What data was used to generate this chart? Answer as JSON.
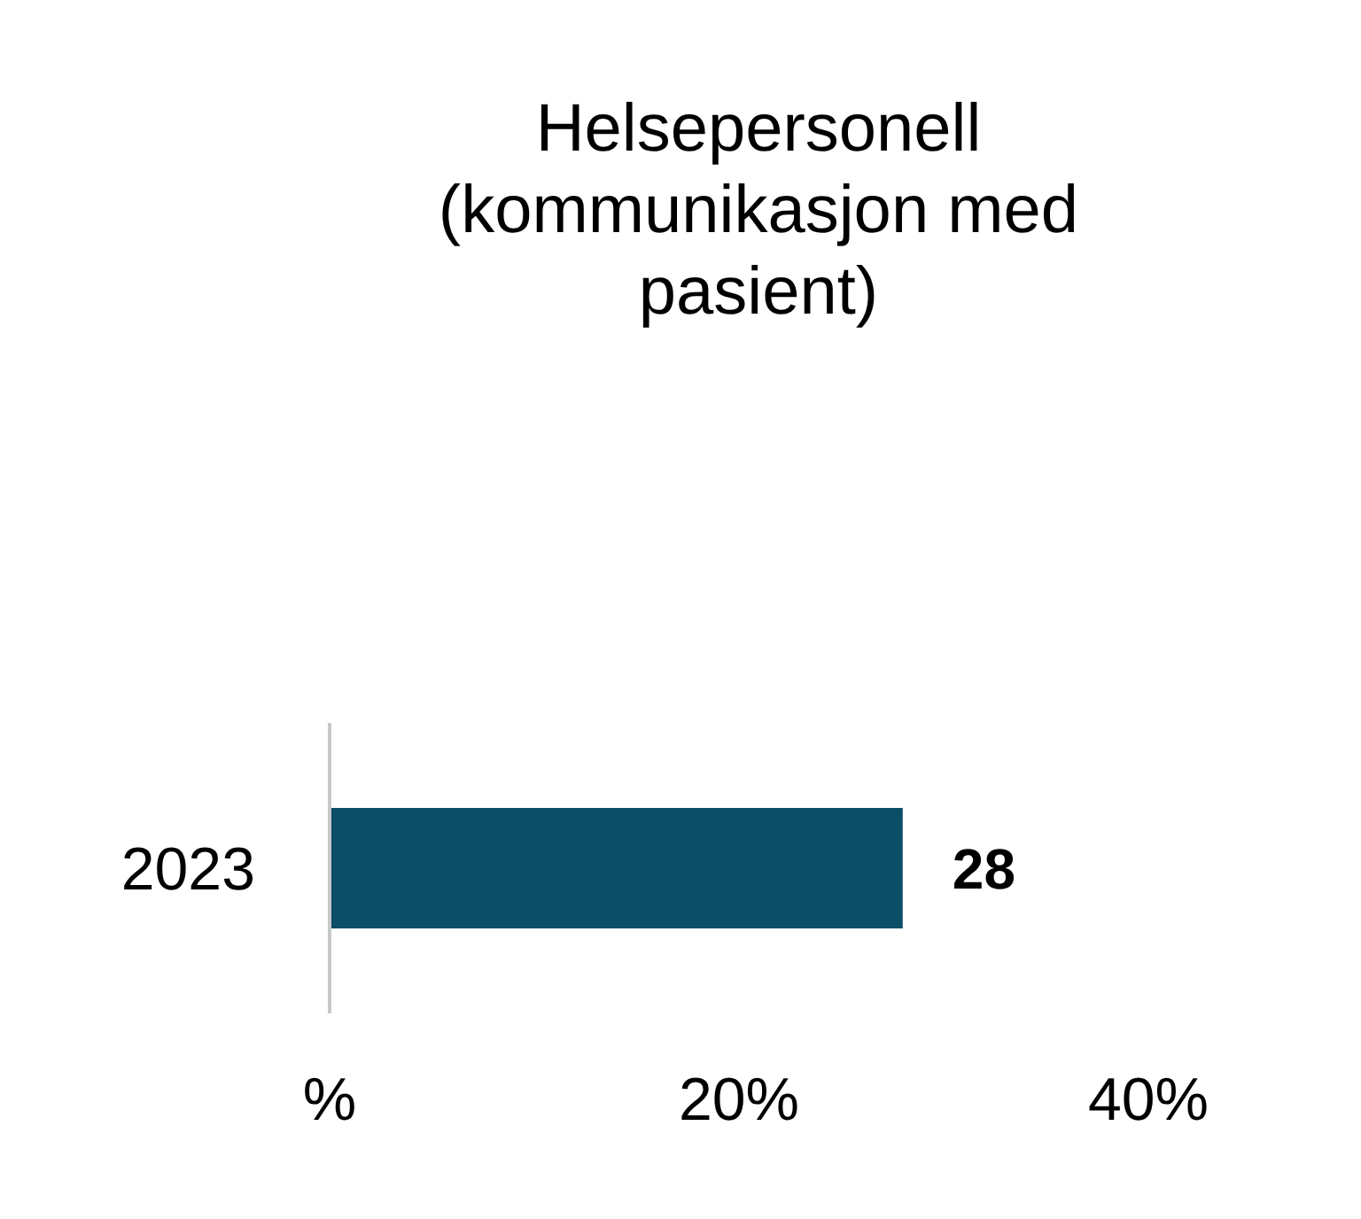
{
  "chart_data": {
    "type": "bar",
    "orientation": "horizontal",
    "title": "Helsepersonell (kommunikasjon med pasient)",
    "categories": [
      "2023"
    ],
    "series": [
      {
        "color": "#0a4f66",
        "values": [
          28
        ]
      }
    ],
    "xlim": [
      0,
      40
    ],
    "xticks": [
      {
        "value": 0,
        "label": "%"
      },
      {
        "value": 20,
        "label": "20%"
      },
      {
        "value": 40,
        "label": "40%"
      }
    ],
    "data_labels": true,
    "grid": false,
    "legend": false
  }
}
